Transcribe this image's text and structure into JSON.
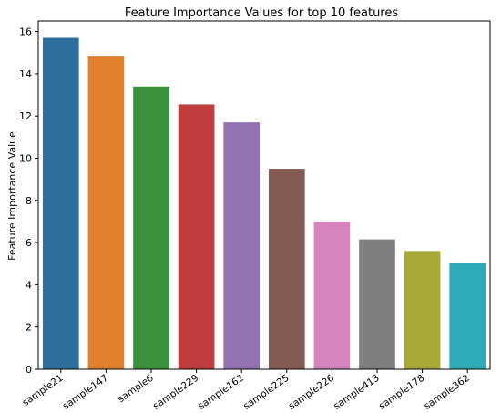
{
  "chart_data": {
    "type": "bar",
    "title": "Feature Importance Values for top 10 features",
    "xlabel": "",
    "ylabel": "Feature Importance Value",
    "ylim": [
      0,
      16.5
    ],
    "yticks": [
      "0",
      "2",
      "4",
      "6",
      "8",
      "10",
      "12",
      "14",
      "16"
    ],
    "grid": false,
    "categories": [
      "sample21",
      "sample147",
      "sample6",
      "sample229",
      "sample162",
      "sample225",
      "sample226",
      "sample413",
      "sample178",
      "sample362"
    ],
    "values": [
      15.7,
      14.85,
      13.4,
      12.55,
      11.7,
      9.5,
      7.0,
      6.15,
      5.6,
      5.05
    ],
    "colors": [
      "#2f6f9f",
      "#e1812c",
      "#3a923a",
      "#c03d3e",
      "#9372b2",
      "#845b53",
      "#d584bd",
      "#7f7f7f",
      "#a9aa35",
      "#2eabb8"
    ]
  }
}
